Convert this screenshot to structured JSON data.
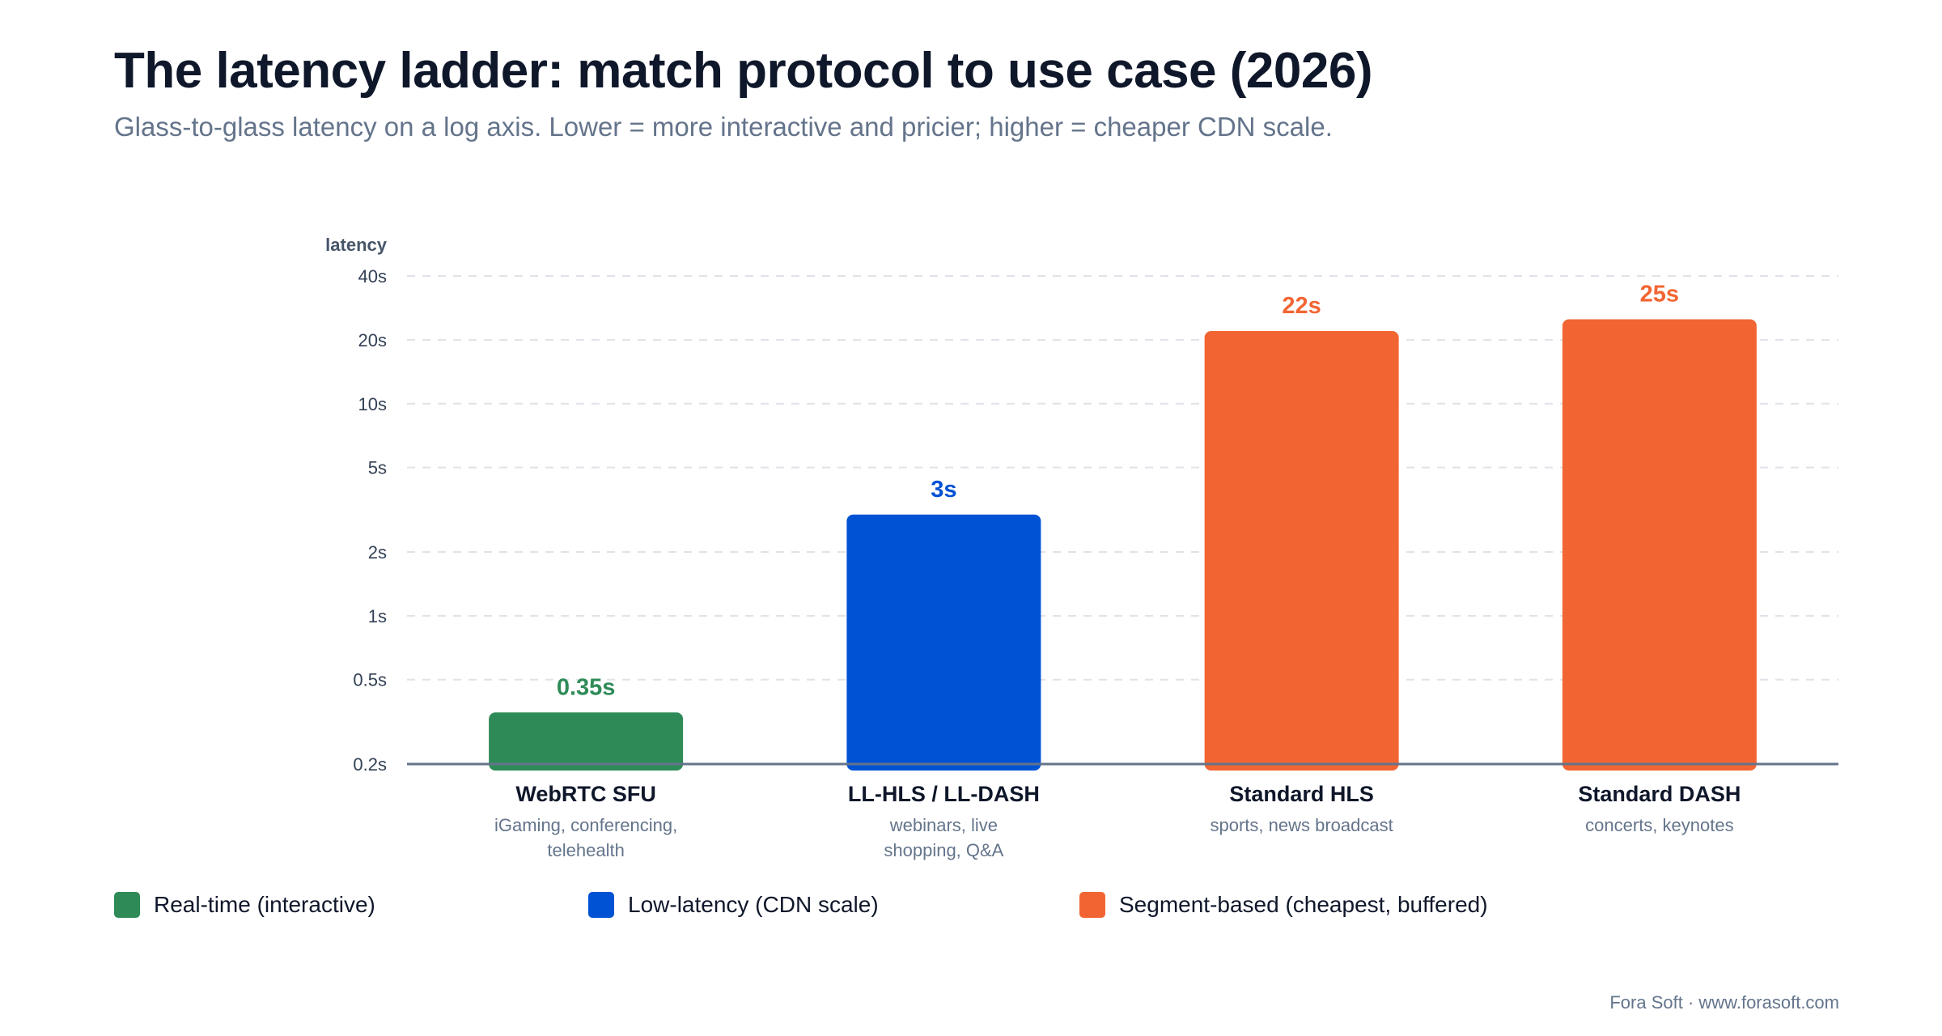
{
  "header": {
    "title": "The latency ladder: match protocol to use case (2026)",
    "subtitle": "Glass-to-glass latency on a log axis. Lower = more interactive and pricier; higher = cheaper CDN scale."
  },
  "chart_data": {
    "type": "bar",
    "scale": "log",
    "ylabel": "latency",
    "ylim": [
      0.2,
      40
    ],
    "yticks": [
      {
        "value": 0.2,
        "label": "0.2s"
      },
      {
        "value": 0.5,
        "label": "0.5s"
      },
      {
        "value": 1,
        "label": "1s"
      },
      {
        "value": 2,
        "label": "2s"
      },
      {
        "value": 5,
        "label": "5s"
      },
      {
        "value": 10,
        "label": "10s"
      },
      {
        "value": 20,
        "label": "20s"
      },
      {
        "value": 40,
        "label": "40s"
      }
    ],
    "grid": true,
    "bars": [
      {
        "category": "WebRTC SFU",
        "value": 0.35,
        "value_label": "0.35s",
        "use_case": [
          "iGaming, conferencing,",
          "telehealth"
        ],
        "group": "Real-time (interactive)",
        "color": "#2e8b57"
      },
      {
        "category": "LL-HLS / LL-DASH",
        "value": 3,
        "value_label": "3s",
        "use_case": [
          "webinars, live",
          "shopping, Q&A"
        ],
        "group": "Low-latency (CDN scale)",
        "color": "#0052d4"
      },
      {
        "category": "Standard HLS",
        "value": 22,
        "value_label": "22s",
        "use_case": [
          "sports, news broadcast"
        ],
        "group": "Segment-based (cheapest, buffered)",
        "color": "#f26533"
      },
      {
        "category": "Standard DASH",
        "value": 25,
        "value_label": "25s",
        "use_case": [
          "concerts, keynotes"
        ],
        "group": "Segment-based (cheapest, buffered)",
        "color": "#f26533"
      }
    ]
  },
  "legend": [
    {
      "label": "Real-time (interactive)",
      "color": "#2e8b57"
    },
    {
      "label": "Low-latency (CDN scale)",
      "color": "#0052d4"
    },
    {
      "label": "Segment-based (cheapest, buffered)",
      "color": "#f26533"
    }
  ],
  "footer": "Fora Soft · www.forasoft.com"
}
